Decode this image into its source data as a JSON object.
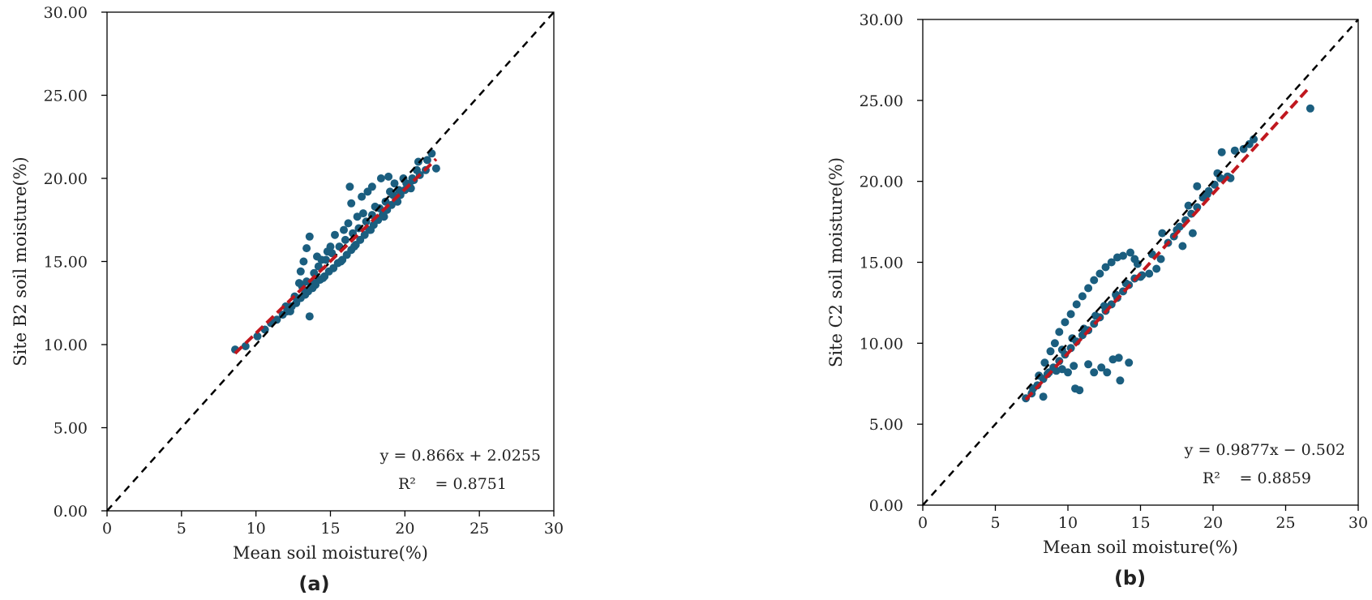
{
  "colors": {
    "points": "#1b5e7f",
    "fit_line": "#c0171e",
    "identity_line": "#000000",
    "frame": "#000000"
  },
  "chart_data": [
    {
      "type": "scatter",
      "caption": "(a)",
      "xlabel": "Mean soil moisture(%)",
      "ylabel": "Site B2 soil moisture(%)",
      "xlim": [
        0,
        30
      ],
      "ylim": [
        0,
        30
      ],
      "x_ticks": [
        "0",
        "5",
        "10",
        "15",
        "20",
        "25",
        "30"
      ],
      "y_ticks": [
        "0.00",
        "5.00",
        "10.00",
        "15.00",
        "20.00",
        "25.00",
        "30.00"
      ],
      "grid": false,
      "equation": "y = 0.866x + 2.0255",
      "r2_label": "R²",
      "r2_value": "= 0.8751",
      "fit": {
        "slope": 0.866,
        "intercept": 2.0255,
        "x_range": [
          8.6,
          22.1
        ]
      },
      "identity_line": true,
      "points": [
        [
          8.6,
          9.7
        ],
        [
          9.3,
          9.9
        ],
        [
          10.1,
          10.5
        ],
        [
          10.6,
          10.9
        ],
        [
          11.0,
          11.3
        ],
        [
          11.4,
          11.5
        ],
        [
          11.8,
          11.8
        ],
        [
          12.1,
          12.0
        ],
        [
          12.4,
          12.3
        ],
        [
          12.7,
          12.5
        ],
        [
          13.0,
          12.8
        ],
        [
          13.3,
          13.0
        ],
        [
          13.5,
          13.2
        ],
        [
          13.8,
          13.4
        ],
        [
          14.0,
          13.6
        ],
        [
          14.3,
          13.9
        ],
        [
          14.6,
          14.1
        ],
        [
          14.9,
          14.4
        ],
        [
          15.2,
          14.6
        ],
        [
          15.5,
          14.9
        ],
        [
          15.8,
          15.1
        ],
        [
          16.1,
          15.4
        ],
        [
          16.4,
          15.7
        ],
        [
          16.7,
          16.0
        ],
        [
          17.0,
          16.3
        ],
        [
          17.3,
          16.6
        ],
        [
          17.6,
          16.9
        ],
        [
          17.9,
          17.2
        ],
        [
          18.2,
          17.5
        ],
        [
          18.5,
          17.8
        ],
        [
          18.8,
          18.1
        ],
        [
          19.1,
          18.4
        ],
        [
          19.4,
          18.7
        ],
        [
          19.7,
          19.0
        ],
        [
          20.0,
          19.3
        ],
        [
          20.3,
          19.6
        ],
        [
          20.6,
          19.9
        ],
        [
          21.0,
          20.2
        ],
        [
          21.4,
          20.5
        ],
        [
          22.1,
          20.6
        ],
        [
          12.0,
          12.3
        ],
        [
          12.6,
          12.9
        ],
        [
          13.1,
          13.5
        ],
        [
          13.4,
          13.8
        ],
        [
          13.9,
          14.3
        ],
        [
          14.2,
          14.7
        ],
        [
          14.7,
          15.1
        ],
        [
          15.1,
          15.5
        ],
        [
          15.6,
          15.9
        ],
        [
          16.0,
          16.3
        ],
        [
          16.5,
          16.7
        ],
        [
          16.9,
          17.0
        ],
        [
          17.4,
          17.4
        ],
        [
          17.8,
          17.8
        ],
        [
          18.3,
          18.2
        ],
        [
          18.7,
          18.6
        ],
        [
          19.2,
          19.0
        ],
        [
          19.6,
          19.3
        ],
        [
          20.1,
          19.7
        ],
        [
          20.5,
          20.0
        ],
        [
          12.9,
          13.7
        ],
        [
          13.0,
          14.4
        ],
        [
          13.2,
          15.0
        ],
        [
          13.4,
          15.8
        ],
        [
          13.6,
          16.5
        ],
        [
          13.6,
          11.7
        ],
        [
          13.9,
          13.7
        ],
        [
          14.4,
          15.1
        ],
        [
          14.8,
          15.6
        ],
        [
          15.3,
          16.6
        ],
        [
          15.9,
          16.9
        ],
        [
          16.2,
          17.3
        ],
        [
          16.4,
          18.5
        ],
        [
          16.3,
          19.5
        ],
        [
          16.8,
          17.7
        ],
        [
          17.1,
          18.9
        ],
        [
          17.5,
          19.2
        ],
        [
          17.8,
          19.5
        ],
        [
          18.0,
          18.3
        ],
        [
          18.4,
          20.0
        ],
        [
          18.9,
          20.1
        ],
        [
          19.3,
          19.7
        ],
        [
          19.9,
          20.0
        ],
        [
          20.9,
          21.0
        ],
        [
          21.8,
          21.5
        ],
        [
          21.5,
          21.1
        ],
        [
          20.8,
          20.5
        ],
        [
          19.0,
          19.2
        ],
        [
          17.2,
          17.9
        ],
        [
          15.0,
          15.9
        ],
        [
          14.1,
          15.3
        ],
        [
          12.3,
          12.0
        ],
        [
          13.3,
          13.1
        ],
        [
          14.5,
          14.0
        ],
        [
          15.7,
          15.0
        ],
        [
          16.6,
          15.9
        ],
        [
          17.7,
          16.9
        ],
        [
          18.6,
          17.7
        ],
        [
          19.5,
          18.6
        ],
        [
          20.4,
          19.4
        ]
      ]
    },
    {
      "type": "scatter",
      "caption": "(b)",
      "xlabel": "Mean soil moisture(%)",
      "ylabel": "Site C2 soil moisture(%)",
      "xlim": [
        0,
        30
      ],
      "ylim": [
        0,
        30
      ],
      "x_ticks": [
        "0",
        "5",
        "10",
        "15",
        "20",
        "25",
        "30"
      ],
      "y_ticks": [
        "0.00",
        "5.00",
        "10.00",
        "15.00",
        "20.00",
        "25.00",
        "30.00"
      ],
      "grid": false,
      "equation": "y = 0.9877x − 0.502",
      "r2_label": "R²",
      "r2_value": "= 0.8859",
      "fit": {
        "slope": 0.9877,
        "intercept": -0.502,
        "x_range": [
          7.1,
          26.5
        ]
      },
      "identity_line": true,
      "points": [
        [
          7.1,
          6.6
        ],
        [
          7.5,
          6.9
        ],
        [
          7.9,
          7.4
        ],
        [
          8.3,
          7.8
        ],
        [
          8.6,
          8.1
        ],
        [
          9.0,
          8.5
        ],
        [
          9.4,
          8.9
        ],
        [
          9.8,
          9.3
        ],
        [
          10.2,
          9.7
        ],
        [
          10.6,
          10.1
        ],
        [
          11.0,
          10.5
        ],
        [
          11.4,
          10.8
        ],
        [
          11.8,
          11.2
        ],
        [
          12.2,
          11.6
        ],
        [
          12.6,
          12.0
        ],
        [
          13.0,
          12.4
        ],
        [
          13.4,
          12.8
        ],
        [
          13.8,
          13.2
        ],
        [
          14.2,
          13.6
        ],
        [
          14.6,
          14.0
        ],
        [
          15.0,
          14.1
        ],
        [
          15.6,
          14.3
        ],
        [
          16.1,
          14.6
        ],
        [
          16.4,
          15.2
        ],
        [
          16.9,
          16.2
        ],
        [
          17.3,
          16.6
        ],
        [
          17.7,
          17.2
        ],
        [
          18.1,
          17.6
        ],
        [
          18.5,
          18.0
        ],
        [
          18.9,
          18.4
        ],
        [
          19.3,
          19.0
        ],
        [
          19.7,
          19.4
        ],
        [
          20.1,
          19.8
        ],
        [
          20.5,
          20.2
        ],
        [
          21.0,
          20.3
        ],
        [
          21.5,
          21.9
        ],
        [
          22.1,
          22.0
        ],
        [
          22.8,
          22.6
        ],
        [
          20.6,
          21.8
        ],
        [
          26.7,
          24.5
        ],
        [
          7.6,
          7.2
        ],
        [
          8.0,
          8.0
        ],
        [
          8.4,
          8.8
        ],
        [
          8.8,
          9.5
        ],
        [
          9.1,
          10.0
        ],
        [
          9.4,
          10.7
        ],
        [
          9.8,
          11.3
        ],
        [
          10.2,
          11.8
        ],
        [
          10.6,
          12.4
        ],
        [
          11.0,
          12.9
        ],
        [
          11.4,
          13.4
        ],
        [
          11.8,
          13.9
        ],
        [
          12.2,
          14.3
        ],
        [
          12.6,
          14.7
        ],
        [
          13.0,
          15.0
        ],
        [
          13.4,
          15.3
        ],
        [
          13.8,
          15.4
        ],
        [
          14.3,
          15.6
        ],
        [
          14.6,
          15.2
        ],
        [
          15.1,
          14.2
        ],
        [
          8.3,
          6.7
        ],
        [
          8.7,
          8.2
        ],
        [
          9.2,
          8.3
        ],
        [
          9.6,
          8.4
        ],
        [
          10.0,
          8.2
        ],
        [
          10.4,
          8.6
        ],
        [
          10.5,
          7.2
        ],
        [
          10.8,
          7.1
        ],
        [
          11.4,
          8.7
        ],
        [
          11.8,
          8.2
        ],
        [
          12.3,
          8.5
        ],
        [
          12.7,
          8.2
        ],
        [
          13.1,
          9.0
        ],
        [
          13.5,
          9.1
        ],
        [
          13.6,
          7.7
        ],
        [
          14.2,
          8.8
        ],
        [
          9.6,
          9.6
        ],
        [
          10.3,
          10.3
        ],
        [
          11.1,
          10.9
        ],
        [
          11.9,
          11.7
        ],
        [
          12.5,
          12.3
        ],
        [
          13.3,
          13.0
        ],
        [
          14.0,
          13.7
        ],
        [
          14.8,
          14.9
        ],
        [
          15.8,
          15.5
        ],
        [
          16.5,
          16.8
        ],
        [
          17.5,
          17.0
        ],
        [
          18.3,
          18.5
        ],
        [
          18.9,
          19.7
        ],
        [
          19.6,
          19.2
        ],
        [
          20.3,
          20.5
        ],
        [
          21.2,
          20.2
        ],
        [
          22.5,
          22.3
        ],
        [
          17.9,
          16.0
        ],
        [
          18.6,
          16.8
        ]
      ]
    }
  ]
}
